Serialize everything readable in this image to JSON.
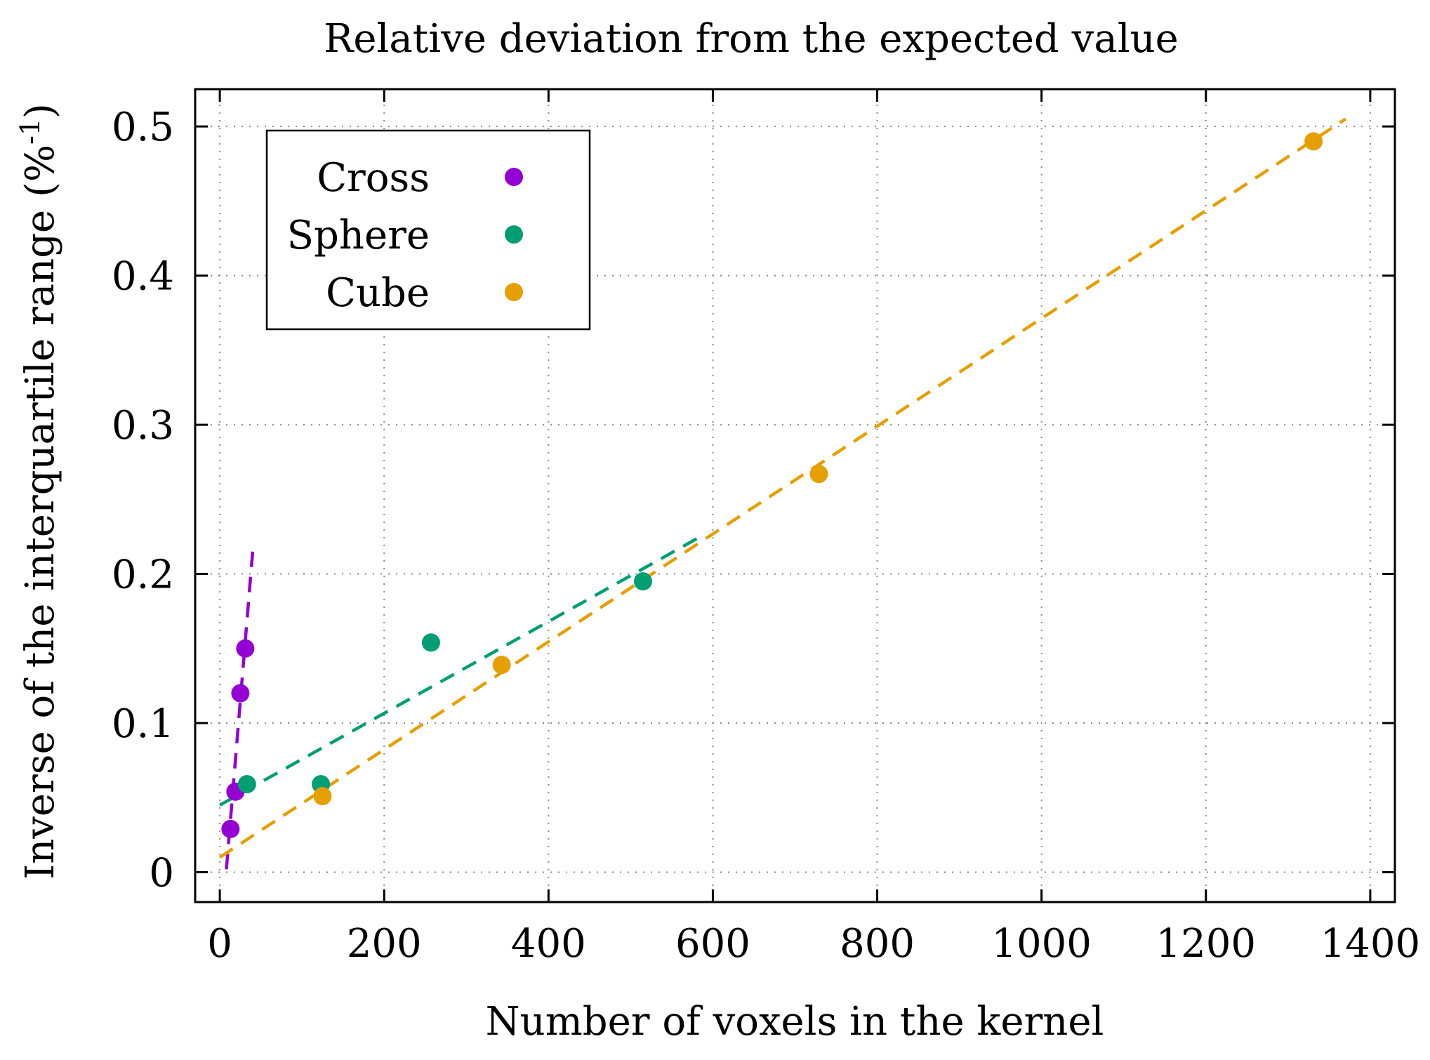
{
  "chart_data": {
    "type": "scatter",
    "title": "Relative deviation from the expected value",
    "xlabel": "Number of voxels in the kernel",
    "ylabel_main": "Inverse of the interquartile range (%",
    "ylabel_sup": "-1",
    "ylabel_end": ")",
    "xlim": [
      -30,
      1430
    ],
    "ylim": [
      -0.02,
      0.525
    ],
    "xticks": [
      0,
      200,
      400,
      600,
      800,
      1000,
      1200,
      1400
    ],
    "xtick_labels": [
      "0",
      "200",
      "400",
      "600",
      "800",
      "1000",
      "1200",
      "1400"
    ],
    "yticks": [
      0,
      0.1,
      0.2,
      0.3,
      0.4,
      0.5
    ],
    "ytick_labels": [
      "0",
      "0.1",
      "0.2",
      "0.3",
      "0.4",
      "0.5"
    ],
    "grid": true,
    "legend_position": "top-left",
    "series": [
      {
        "name": "Cross",
        "color": "#9400d3",
        "x": [
          13,
          19,
          25,
          31
        ],
        "y": [
          0.029,
          0.054,
          0.12,
          0.15
        ],
        "fit": {
          "x": [
            8,
            40
          ],
          "y": [
            0.002,
            0.215
          ]
        }
      },
      {
        "name": "Sphere",
        "color": "#009e73",
        "x": [
          33,
          123,
          257,
          515
        ],
        "y": [
          0.059,
          0.059,
          0.154,
          0.195
        ],
        "fit": {
          "x": [
            0,
            585
          ],
          "y": [
            0.045,
            0.225
          ]
        }
      },
      {
        "name": "Cube",
        "color": "#e69f00",
        "x": [
          125,
          343,
          729,
          1331
        ],
        "y": [
          0.051,
          0.139,
          0.267,
          0.49
        ],
        "fit": {
          "x": [
            0,
            1370
          ],
          "y": [
            0.01,
            0.505
          ]
        }
      }
    ]
  }
}
